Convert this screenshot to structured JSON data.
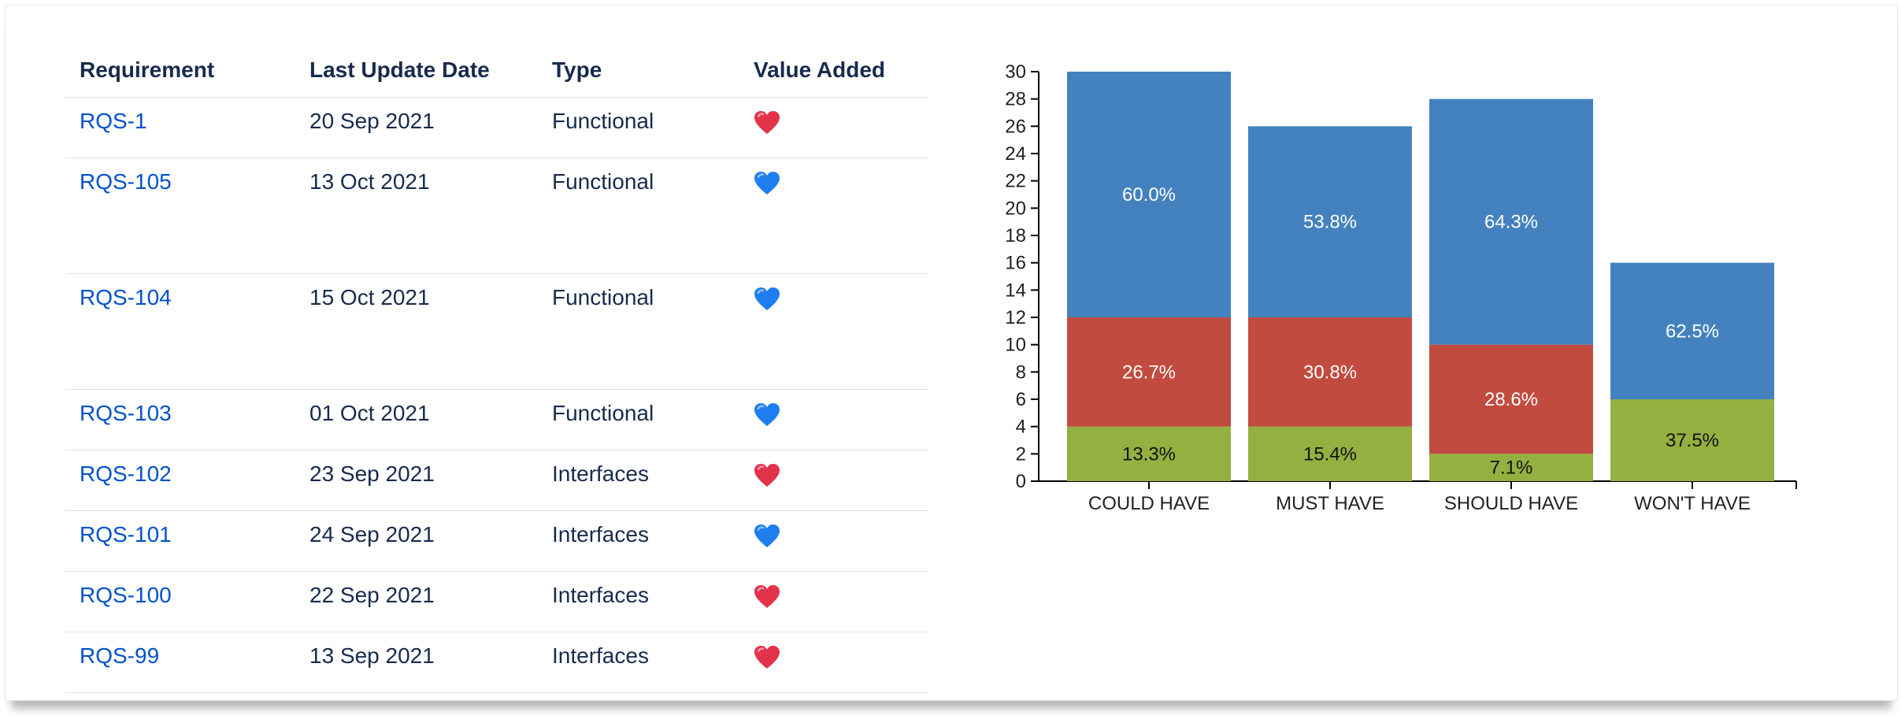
{
  "table": {
    "headers": [
      "Requirement",
      "Last Update Date",
      "Type",
      "Value Added"
    ],
    "rows": [
      {
        "id": "RQS-1",
        "date": "20 Sep 2021",
        "type": "Functional",
        "value": "red-heart-icon"
      },
      {
        "id": "RQS-105",
        "date": "13 Oct 2021",
        "type": "Functional",
        "value": "blue-heart-icon"
      },
      {
        "id": "RQS-104",
        "date": "15 Oct 2021",
        "type": "Functional",
        "value": "blue-heart-icon"
      },
      {
        "id": "RQS-103",
        "date": "01 Oct 2021",
        "type": "Functional",
        "value": "blue-heart-icon"
      },
      {
        "id": "RQS-102",
        "date": "23 Sep 2021",
        "type": "Interfaces",
        "value": "red-heart-icon"
      },
      {
        "id": "RQS-101",
        "date": "24 Sep 2021",
        "type": "Interfaces",
        "value": "blue-heart-icon"
      },
      {
        "id": "RQS-100",
        "date": "22 Sep 2021",
        "type": "Interfaces",
        "value": "red-heart-icon"
      },
      {
        "id": "RQS-99",
        "date": "13 Sep 2021",
        "type": "Interfaces",
        "value": "red-heart-icon"
      }
    ]
  },
  "colors": {
    "link": "#0052cc",
    "text": "#172b4d",
    "heart_red": "#e2334b",
    "heart_blue": "#1e7ef0"
  },
  "chart_data": {
    "type": "bar",
    "stacked": true,
    "categories": [
      "COULD HAVE",
      "MUST HAVE",
      "SHOULD HAVE",
      "WON'T HAVE"
    ],
    "series": [
      {
        "values": [
          4,
          4,
          2,
          6
        ],
        "labels": [
          "13.3%",
          "15.4%",
          "7.1%",
          "37.5%"
        ],
        "color": "#94b040"
      },
      {
        "values": [
          8,
          8,
          8,
          0
        ],
        "labels": [
          "26.7%",
          "30.8%",
          "28.6%",
          ""
        ],
        "color": "#c24b3f"
      },
      {
        "values": [
          18,
          14,
          18,
          10
        ],
        "labels": [
          "60.0%",
          "53.8%",
          "64.3%",
          "62.5%"
        ],
        "color": "#4482bf"
      }
    ],
    "ylim": [
      0,
      30
    ],
    "yticks": [
      0,
      2,
      4,
      6,
      8,
      10,
      12,
      14,
      16,
      18,
      20,
      22,
      24,
      26,
      28,
      30
    ],
    "grid": false,
    "legend": "none"
  }
}
